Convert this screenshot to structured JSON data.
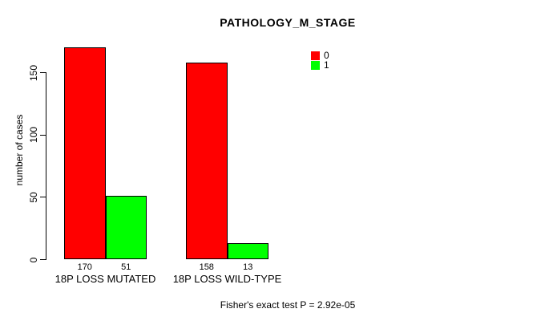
{
  "chart_data": {
    "type": "bar",
    "title": "PATHOLOGY_M_STAGE",
    "categories": [
      "18P LOSS MUTATED",
      "18P LOSS WILD-TYPE"
    ],
    "series": [
      {
        "name": "0",
        "color": "#ff0000",
        "values": [
          170,
          158
        ]
      },
      {
        "name": "1",
        "color": "#00ff00",
        "values": [
          51,
          13
        ]
      }
    ],
    "bar_value_labels": [
      [
        "170",
        "158"
      ],
      [
        "51",
        "13"
      ]
    ],
    "xlabel": "",
    "ylabel": "number of cases",
    "ylim": [
      0,
      175
    ],
    "yticks": [
      0,
      50,
      100,
      150
    ],
    "grid": false,
    "legend_position": "top-right",
    "bar_border_color": "#000000",
    "footnote": "Fisher's exact test P = 2.92e-05"
  }
}
